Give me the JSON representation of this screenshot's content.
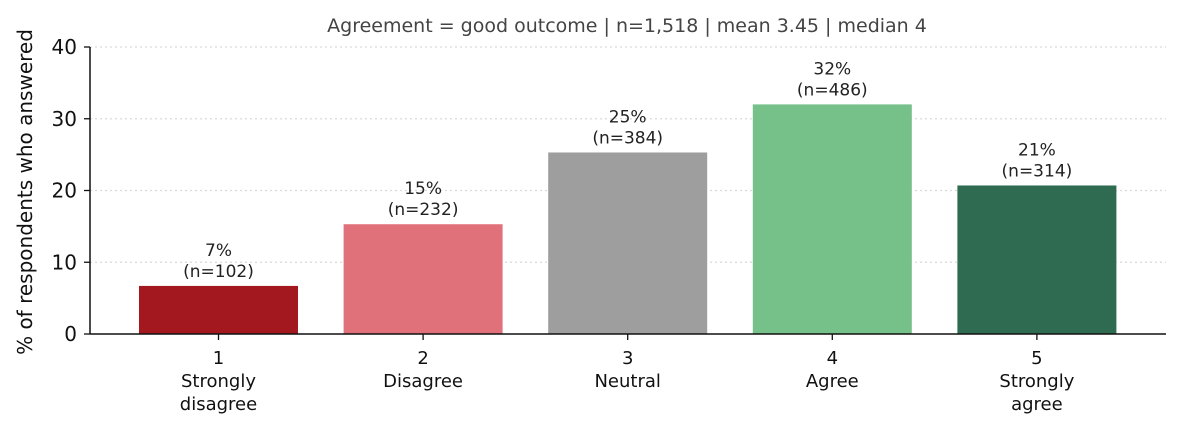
{
  "chart_data": {
    "type": "bar",
    "subtitle": "Agreement = good outcome   |   n=1,518   |   mean 3.45   |   median 4",
    "ylabel": "% of respondents who answered",
    "xlabel": "",
    "ylim": [
      0,
      40
    ],
    "yticks": [
      0,
      10,
      20,
      30,
      40
    ],
    "grid": "horizontal dotted",
    "categories": [
      {
        "code": "1",
        "label_lines": [
          "Strongly",
          "disagree"
        ]
      },
      {
        "code": "2",
        "label_lines": [
          "Disagree"
        ]
      },
      {
        "code": "3",
        "label_lines": [
          "Neutral"
        ]
      },
      {
        "code": "4",
        "label_lines": [
          "Agree"
        ]
      },
      {
        "code": "5",
        "label_lines": [
          "Strongly",
          "agree"
        ]
      }
    ],
    "values": [
      6.7,
      15.3,
      25.3,
      32.0,
      20.7
    ],
    "data_labels": [
      {
        "pct": "7%",
        "n": "(n=102)"
      },
      {
        "pct": "15%",
        "n": "(n=232)"
      },
      {
        "pct": "25%",
        "n": "(n=384)"
      },
      {
        "pct": "32%",
        "n": "(n=486)"
      },
      {
        "pct": "21%",
        "n": "(n=314)"
      }
    ],
    "colors": [
      "#a3171e",
      "#e0707a",
      "#9e9e9e",
      "#76c189",
      "#2e6b50"
    ]
  }
}
